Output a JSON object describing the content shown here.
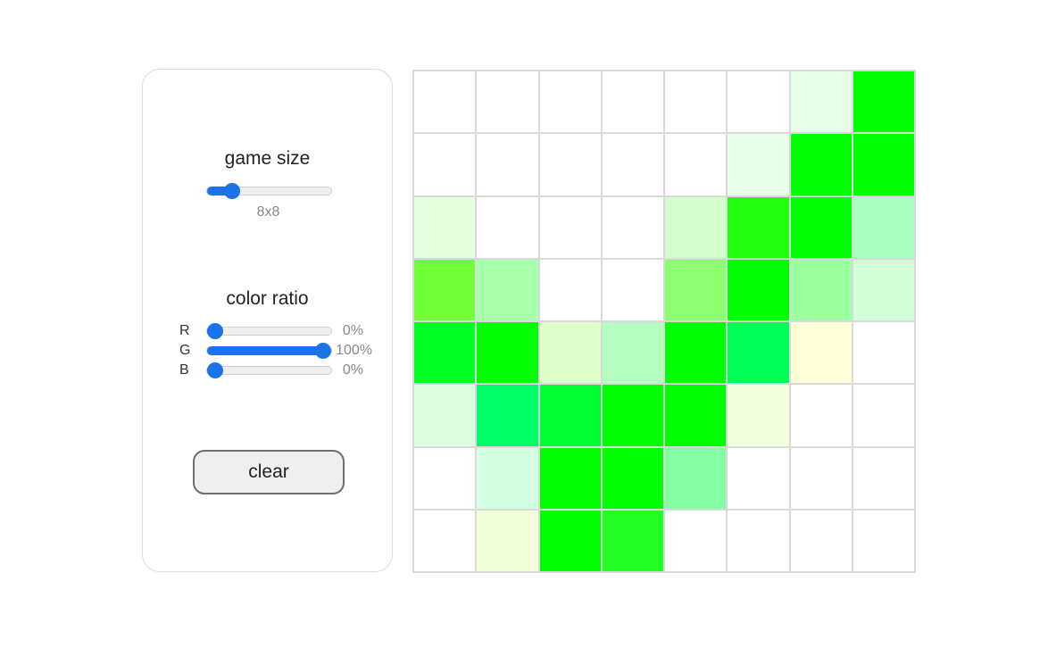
{
  "controls": {
    "game_size": {
      "label": "game size",
      "value_text": "8x8",
      "fraction": 0.16
    },
    "color_ratio": {
      "label": "color ratio",
      "channels": [
        {
          "letter": "R",
          "value_text": "0%",
          "fraction": 0.0
        },
        {
          "letter": "G",
          "value_text": "100%",
          "fraction": 1.0
        },
        {
          "letter": "B",
          "value_text": "0%",
          "fraction": 0.0
        }
      ]
    },
    "clear_label": "clear",
    "accent_color": "#1a73e8"
  },
  "grid": {
    "size": 8,
    "cells": [
      [
        "#ffffff",
        "#ffffff",
        "#ffffff",
        "#ffffff",
        "#ffffff",
        "#ffffff",
        "#e8ffe8",
        "#00ff00"
      ],
      [
        "#ffffff",
        "#ffffff",
        "#ffffff",
        "#ffffff",
        "#ffffff",
        "#eaffea",
        "#00ff00",
        "#00ff00"
      ],
      [
        "#e6ffe0",
        "#ffffff",
        "#ffffff",
        "#ffffff",
        "#d2ffcc",
        "#22ff11",
        "#00ff00",
        "#a8ffc0"
      ],
      [
        "#70ff38",
        "#a8ffac",
        "#ffffff",
        "#ffffff",
        "#8cff70",
        "#00ff00",
        "#9cffa0",
        "#d2ffd8"
      ],
      [
        "#00ff22",
        "#00ff00",
        "#e0ffc8",
        "#b4ffc0",
        "#00ff00",
        "#00ff55",
        "#ffffd8",
        "#ffffff"
      ],
      [
        "#dcffe2",
        "#00ff66",
        "#00ff30",
        "#00ff00",
        "#00ff00",
        "#f4ffdc",
        "#ffffff",
        "#ffffff"
      ],
      [
        "#ffffff",
        "#d4ffe2",
        "#00ff00",
        "#00ff00",
        "#84ffa4",
        "#ffffff",
        "#ffffff",
        "#ffffff"
      ],
      [
        "#ffffff",
        "#f2ffdc",
        "#00ff00",
        "#22ff22",
        "#ffffff",
        "#ffffff",
        "#ffffff",
        "#ffffff"
      ]
    ]
  }
}
